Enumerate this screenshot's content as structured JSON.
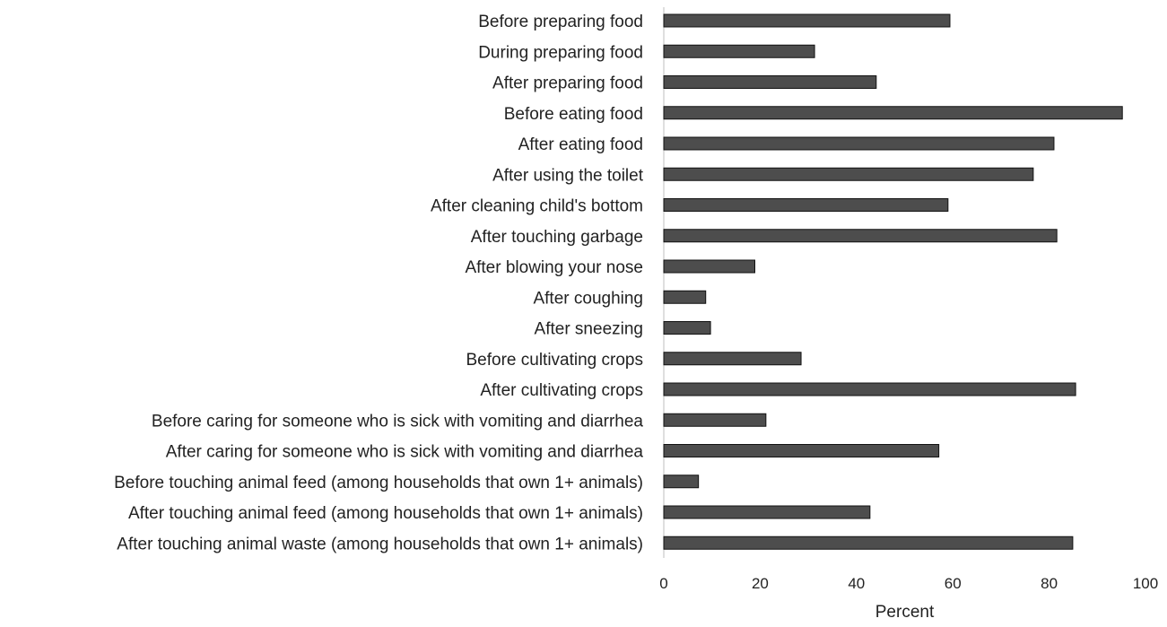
{
  "chart_data": {
    "type": "bar",
    "orientation": "horizontal",
    "categories": [
      "Before preparing food",
      "During preparing food",
      "After preparing food",
      "Before eating food",
      "After eating food",
      "After using the toilet",
      "After cleaning child's bottom",
      "After touching garbage",
      "After blowing your nose",
      "After coughing",
      "After sneezing",
      "Before cultivating crops",
      "After cultivating crops",
      "Before caring for someone who is sick with vomiting and diarrhea",
      "After caring for someone who is sick with vomiting and diarrhea",
      "Before touching animal feed (among households that own 1+ animals)",
      "After touching animal feed (among households that own 1+ animals)",
      "After touching animal waste (among households that own 1+ animals)"
    ],
    "values": [
      59.4,
      31.3,
      44.1,
      95.2,
      81.0,
      76.7,
      59.0,
      81.6,
      18.9,
      8.7,
      9.7,
      28.5,
      85.5,
      21.2,
      57.1,
      7.2,
      42.8,
      84.9
    ],
    "xlabel": "Percent",
    "ylabel": "",
    "xlim": [
      0,
      100
    ],
    "xticks": [
      "0",
      "20",
      "40",
      "60",
      "80",
      "100"
    ],
    "grid": false,
    "bar_color": "#4d4d4d",
    "bar_edge_color": "#111111"
  }
}
